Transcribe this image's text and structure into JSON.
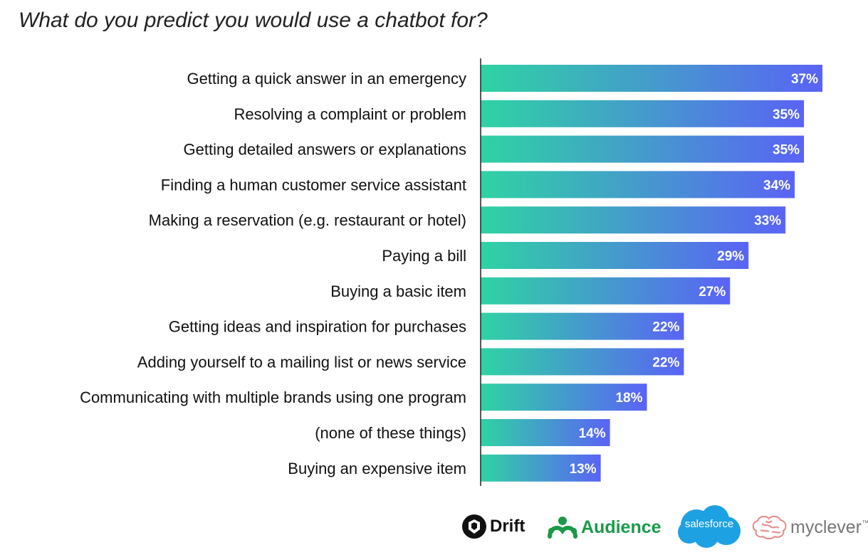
{
  "title": "What do you predict you would use a chatbot for?",
  "colors": {
    "bar_start": "#2fd3a3",
    "bar_end": "#5a63f5",
    "axis": "#222222"
  },
  "chart_data": {
    "type": "bar",
    "orientation": "horizontal",
    "title": "What do you predict you would use a chatbot for?",
    "categories": [
      "Getting a quick answer in an emergency",
      "Resolving a complaint or problem",
      "Getting detailed answers or explanations",
      "Finding a human customer service assistant",
      "Making a reservation (e.g. restaurant or hotel)",
      "Paying a bill",
      "Buying a basic item",
      "Getting ideas and inspiration for purchases",
      "Adding yourself to a mailing list or news service",
      "Communicating with multiple brands using one program",
      "(none of these things)",
      "Buying an expensive item"
    ],
    "values": [
      37,
      35,
      35,
      34,
      33,
      29,
      27,
      22,
      22,
      18,
      14,
      13
    ],
    "value_labels": [
      "37%",
      "35%",
      "35%",
      "34%",
      "33%",
      "29%",
      "27%",
      "22%",
      "22%",
      "18%",
      "14%",
      "13%"
    ],
    "unit": "%",
    "xlim": [
      0,
      37
    ],
    "grid": false,
    "xlabel": "",
    "ylabel": ""
  },
  "logos": {
    "drift": "Drift",
    "audience": "Audience",
    "salesforce": "salesforce",
    "myclever": "myclever",
    "myclever_tm": "™"
  }
}
